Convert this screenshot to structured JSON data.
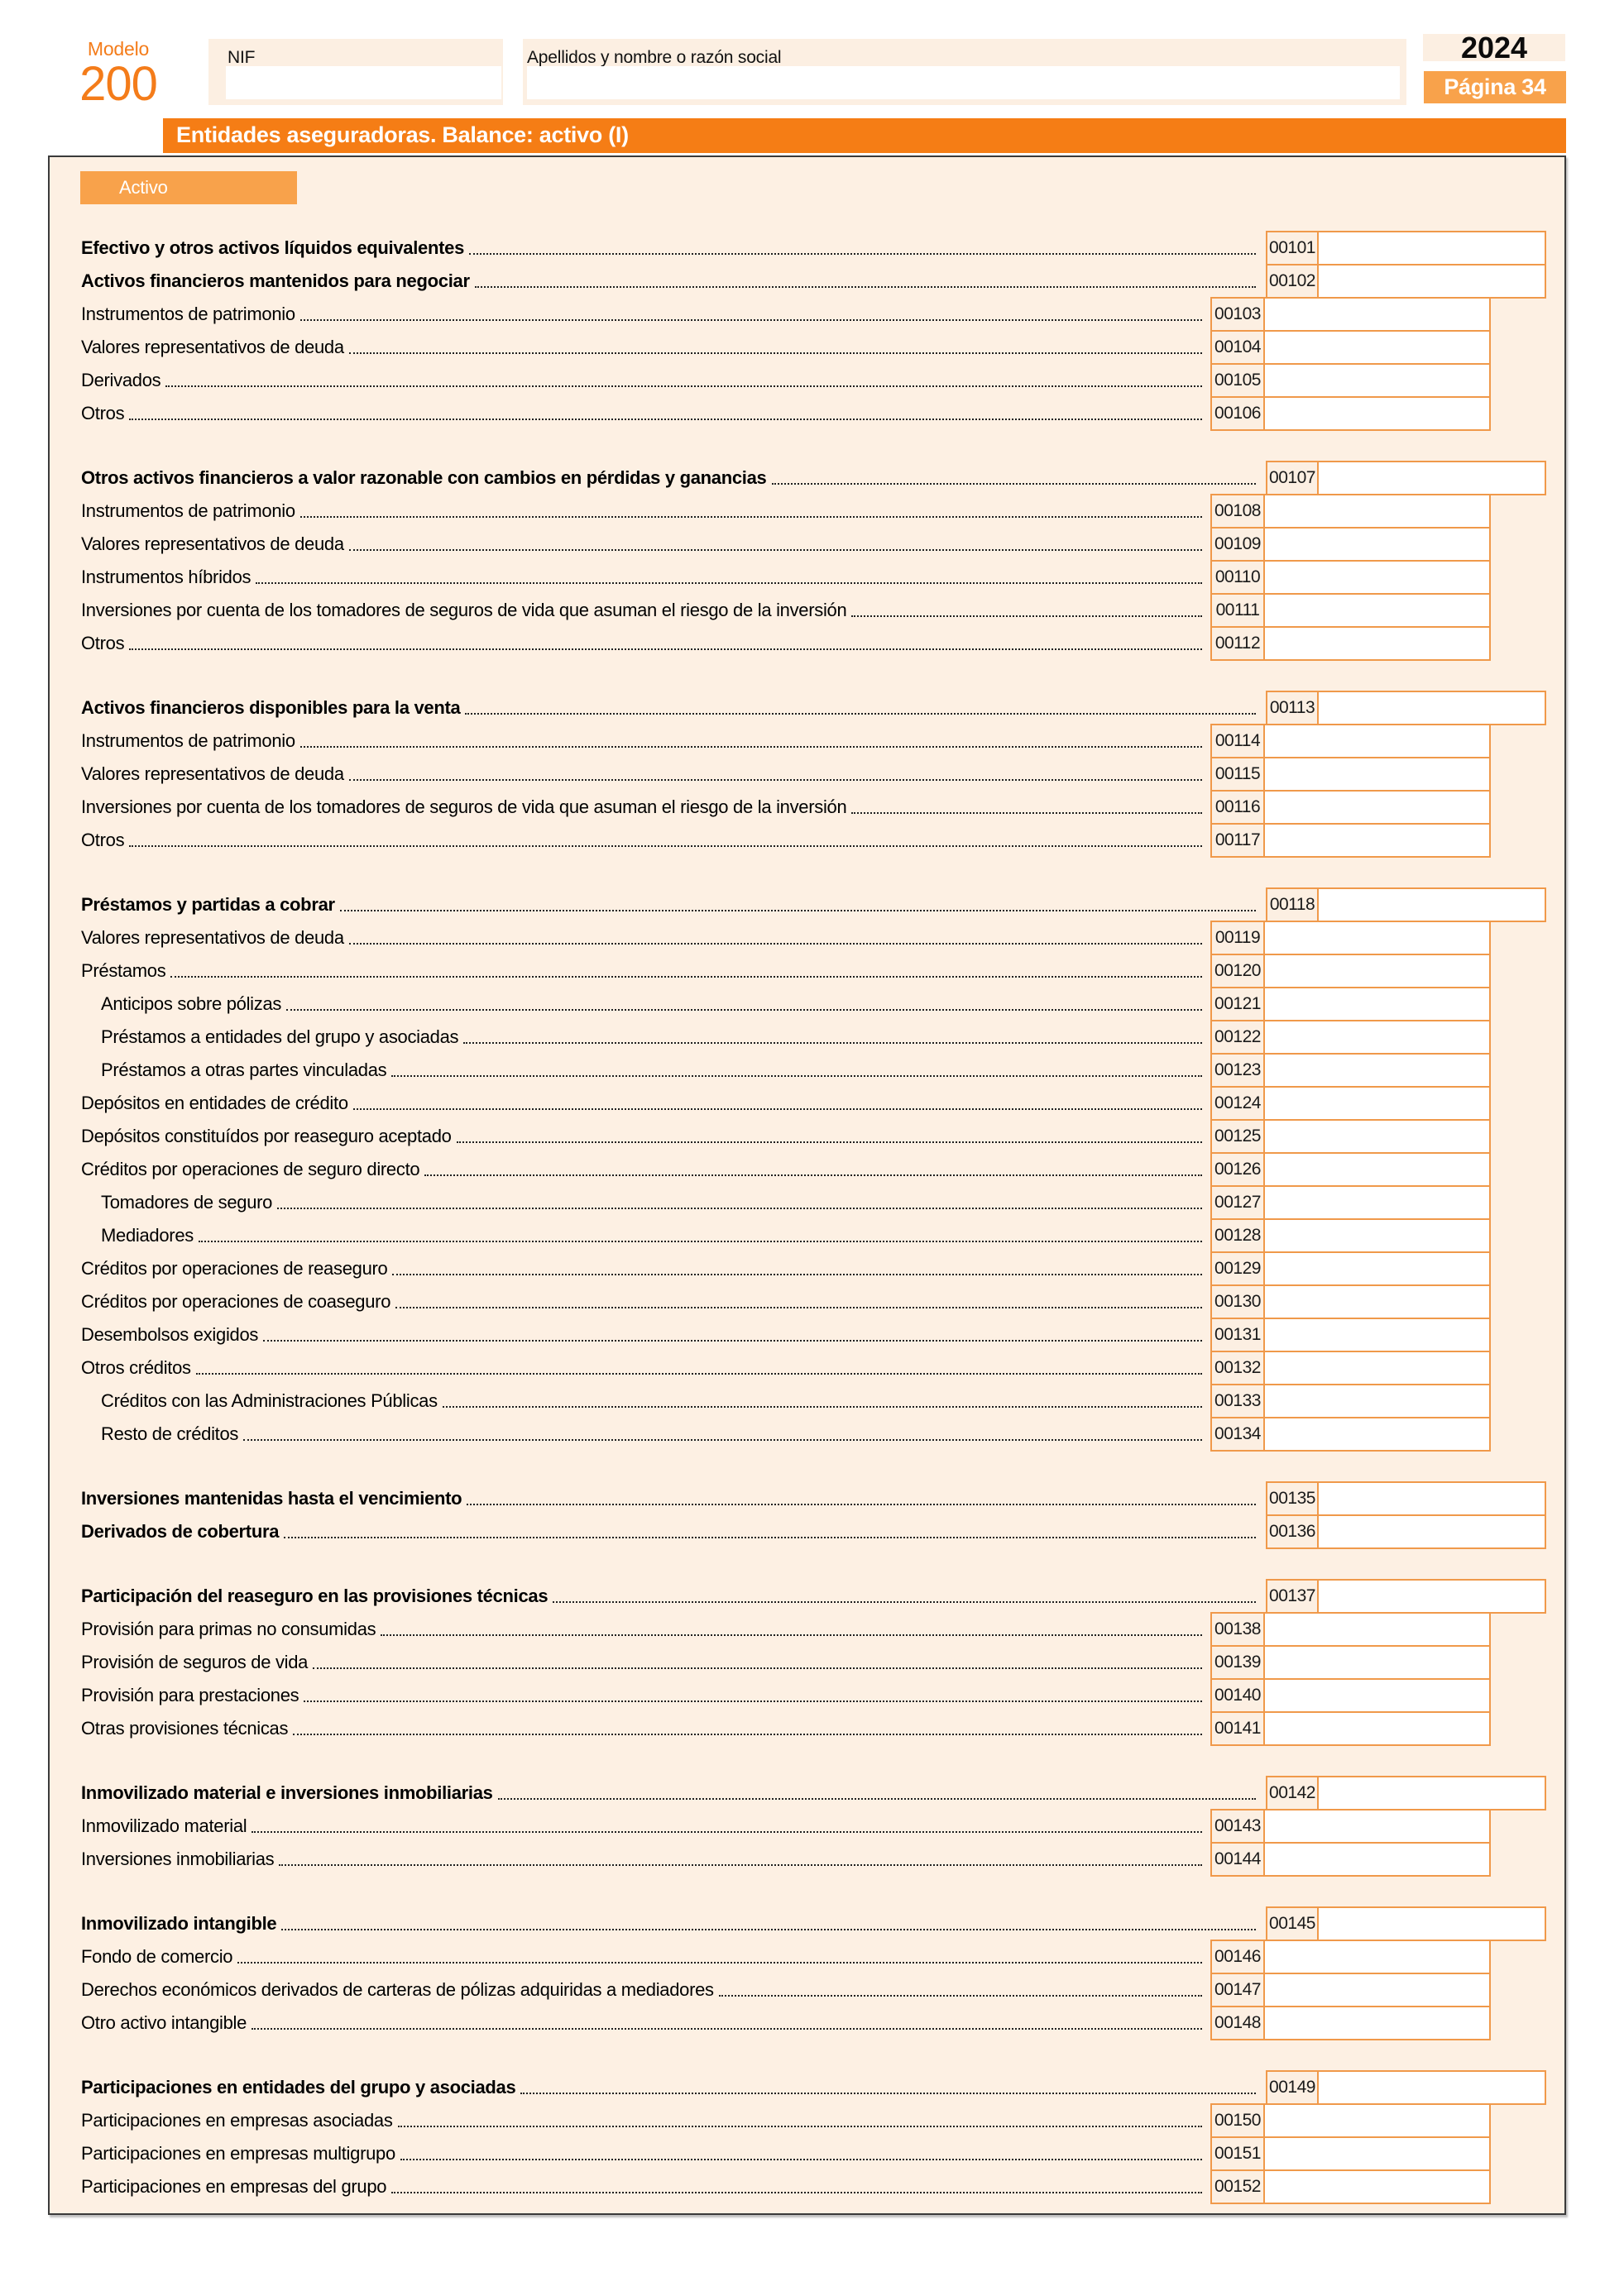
{
  "header": {
    "modelo_label": "Modelo",
    "modelo_number": "200",
    "nif_label": "NIF",
    "nif_value": "",
    "apellidos_label": "Apellidos y nombre o razón social",
    "apellidos_value": "",
    "year": "2024",
    "page_label": "Página 34",
    "title": "Entidades aseguradoras. Balance: activo (I)"
  },
  "colors": {
    "accent_strong": "#F57D15",
    "accent_light": "#F8A24B",
    "box_border": "#F0994A",
    "cream_background": "#FDF0E3"
  },
  "balance": {
    "tab": "Activo",
    "groups": [
      {
        "rows": [
          {
            "label": "Efectivo y otros activos líquidos equivalentes",
            "code": "00101",
            "bold": true,
            "indent": 0,
            "value": ""
          },
          {
            "label": "Activos financieros mantenidos para negociar",
            "code": "00102",
            "bold": true,
            "indent": 0,
            "value": ""
          },
          {
            "label": "Instrumentos de patrimonio",
            "code": "00103",
            "bold": false,
            "indent": 0,
            "value": ""
          },
          {
            "label": "Valores representativos de deuda",
            "code": "00104",
            "bold": false,
            "indent": 0,
            "value": ""
          },
          {
            "label": "Derivados",
            "code": "00105",
            "bold": false,
            "indent": 0,
            "value": ""
          },
          {
            "label": "Otros",
            "code": "00106",
            "bold": false,
            "indent": 0,
            "value": ""
          }
        ]
      },
      {
        "rows": [
          {
            "label": "Otros activos financieros a valor razonable con cambios en pérdidas y ganancias",
            "code": "00107",
            "bold": true,
            "indent": 0,
            "value": ""
          },
          {
            "label": "Instrumentos de patrimonio",
            "code": "00108",
            "bold": false,
            "indent": 0,
            "value": ""
          },
          {
            "label": "Valores representativos de deuda",
            "code": "00109",
            "bold": false,
            "indent": 0,
            "value": ""
          },
          {
            "label": "Instrumentos híbridos",
            "code": "00110",
            "bold": false,
            "indent": 0,
            "value": ""
          },
          {
            "label": "Inversiones por cuenta de los tomadores de seguros de vida que asuman el riesgo de la inversión",
            "code": "00111",
            "bold": false,
            "indent": 0,
            "value": ""
          },
          {
            "label": "Otros",
            "code": "00112",
            "bold": false,
            "indent": 0,
            "value": ""
          }
        ]
      },
      {
        "rows": [
          {
            "label": "Activos financieros disponibles para la venta",
            "code": "00113",
            "bold": true,
            "indent": 0,
            "value": ""
          },
          {
            "label": "Instrumentos de patrimonio",
            "code": "00114",
            "bold": false,
            "indent": 0,
            "value": ""
          },
          {
            "label": "Valores representativos de deuda",
            "code": "00115",
            "bold": false,
            "indent": 0,
            "value": ""
          },
          {
            "label": "Inversiones por cuenta de los tomadores de seguros de vida que asuman el riesgo de la inversión",
            "code": "00116",
            "bold": false,
            "indent": 0,
            "value": ""
          },
          {
            "label": "Otros",
            "code": "00117",
            "bold": false,
            "indent": 0,
            "value": ""
          }
        ]
      },
      {
        "rows": [
          {
            "label": "Préstamos y partidas a cobrar",
            "code": "00118",
            "bold": true,
            "indent": 0,
            "value": ""
          },
          {
            "label": "Valores representativos de deuda",
            "code": "00119",
            "bold": false,
            "indent": 0,
            "value": ""
          },
          {
            "label": "Préstamos",
            "code": "00120",
            "bold": false,
            "indent": 0,
            "value": ""
          },
          {
            "label": "Anticipos sobre pólizas",
            "code": "00121",
            "bold": false,
            "indent": 1,
            "value": ""
          },
          {
            "label": "Préstamos a entidades del grupo y asociadas",
            "code": "00122",
            "bold": false,
            "indent": 1,
            "value": ""
          },
          {
            "label": "Préstamos a otras partes vinculadas",
            "code": "00123",
            "bold": false,
            "indent": 1,
            "value": ""
          },
          {
            "label": "Depósitos en entidades de crédito",
            "code": "00124",
            "bold": false,
            "indent": 0,
            "value": ""
          },
          {
            "label": "Depósitos constituídos por reaseguro aceptado",
            "code": "00125",
            "bold": false,
            "indent": 0,
            "value": ""
          },
          {
            "label": "Créditos por operaciones de seguro directo",
            "code": "00126",
            "bold": false,
            "indent": 0,
            "value": ""
          },
          {
            "label": "Tomadores de seguro",
            "code": "00127",
            "bold": false,
            "indent": 1,
            "value": ""
          },
          {
            "label": "Mediadores",
            "code": "00128",
            "bold": false,
            "indent": 1,
            "value": ""
          },
          {
            "label": "Créditos por operaciones de reaseguro",
            "code": "00129",
            "bold": false,
            "indent": 0,
            "value": ""
          },
          {
            "label": "Créditos por operaciones de coaseguro",
            "code": "00130",
            "bold": false,
            "indent": 0,
            "value": ""
          },
          {
            "label": "Desembolsos exigidos",
            "code": "00131",
            "bold": false,
            "indent": 0,
            "value": ""
          },
          {
            "label": "Otros créditos",
            "code": "00132",
            "bold": false,
            "indent": 0,
            "value": ""
          },
          {
            "label": "Créditos con las Administraciones Públicas",
            "code": "00133",
            "bold": false,
            "indent": 1,
            "value": ""
          },
          {
            "label": "Resto de créditos",
            "code": "00134",
            "bold": false,
            "indent": 1,
            "value": ""
          }
        ]
      },
      {
        "rows": [
          {
            "label": "Inversiones mantenidas hasta el vencimiento",
            "code": "00135",
            "bold": true,
            "indent": 0,
            "value": ""
          },
          {
            "label": "Derivados de cobertura",
            "code": "00136",
            "bold": true,
            "indent": 0,
            "value": ""
          }
        ]
      },
      {
        "rows": [
          {
            "label": "Participación del reaseguro en las provisiones técnicas",
            "code": "00137",
            "bold": true,
            "indent": 0,
            "value": ""
          },
          {
            "label": "Provisión para primas no consumidas",
            "code": "00138",
            "bold": false,
            "indent": 0,
            "value": ""
          },
          {
            "label": "Provisión de seguros de vida",
            "code": "00139",
            "bold": false,
            "indent": 0,
            "value": ""
          },
          {
            "label": "Provisión para prestaciones",
            "code": "00140",
            "bold": false,
            "indent": 0,
            "value": ""
          },
          {
            "label": "Otras provisiones técnicas",
            "code": "00141",
            "bold": false,
            "indent": 0,
            "value": ""
          }
        ]
      },
      {
        "rows": [
          {
            "label": "Inmovilizado material e inversiones inmobiliarias",
            "code": "00142",
            "bold": true,
            "indent": 0,
            "value": ""
          },
          {
            "label": "Inmovilizado material",
            "code": "00143",
            "bold": false,
            "indent": 0,
            "value": ""
          },
          {
            "label": "Inversiones inmobiliarias",
            "code": "00144",
            "bold": false,
            "indent": 0,
            "value": ""
          }
        ]
      },
      {
        "rows": [
          {
            "label": "Inmovilizado intangible",
            "code": "00145",
            "bold": true,
            "indent": 0,
            "value": ""
          },
          {
            "label": "Fondo de comercio",
            "code": "00146",
            "bold": false,
            "indent": 0,
            "value": ""
          },
          {
            "label": "Derechos económicos derivados de carteras de pólizas adquiridas a mediadores",
            "code": "00147",
            "bold": false,
            "indent": 0,
            "value": ""
          },
          {
            "label": "Otro activo intangible",
            "code": "00148",
            "bold": false,
            "indent": 0,
            "value": ""
          }
        ]
      },
      {
        "rows": [
          {
            "label": "Participaciones en entidades del grupo y asociadas",
            "code": "00149",
            "bold": true,
            "indent": 0,
            "value": ""
          },
          {
            "label": "Participaciones en empresas asociadas",
            "code": "00150",
            "bold": false,
            "indent": 0,
            "value": ""
          },
          {
            "label": "Participaciones en empresas multigrupo",
            "code": "00151",
            "bold": false,
            "indent": 0,
            "value": ""
          },
          {
            "label": "Participaciones en empresas del grupo",
            "code": "00152",
            "bold": false,
            "indent": 0,
            "value": ""
          }
        ]
      }
    ]
  }
}
